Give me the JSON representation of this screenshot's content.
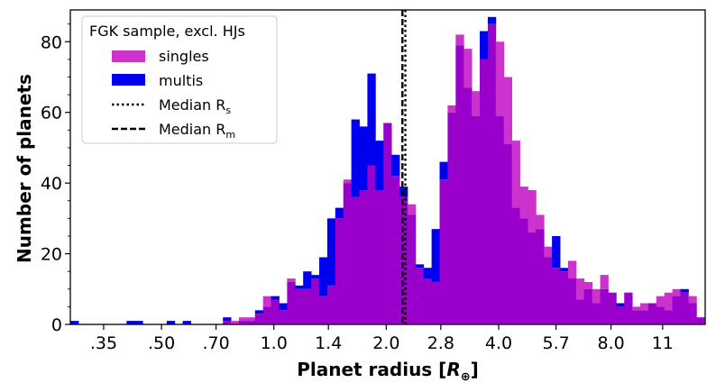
{
  "chart_data": {
    "type": "bar",
    "title": "",
    "xlabel": "Planet radius [",
    "xlabel_symbol": "R",
    "xlabel_sub": "⊕",
    "xlabel_end": "]",
    "ylabel": "Number of planets",
    "x_scale": "log",
    "xlim": [
      0.285,
      14.3
    ],
    "ylim": [
      0,
      89
    ],
    "x_tick_values": [
      0.35,
      0.5,
      0.7,
      1.0,
      1.4,
      2.0,
      2.8,
      4.0,
      5.7,
      8.0,
      11
    ],
    "x_tick_labels": [
      ".35",
      ".50",
      ".70",
      "1.0",
      "1.4",
      "2.0",
      "2.8",
      "4.0",
      "5.7",
      "8.0",
      "11"
    ],
    "y_ticks": [
      0,
      20,
      40,
      60,
      80
    ],
    "grid": false,
    "legend_position": "top-left",
    "legend_title": "FGK sample, excl. HJs",
    "bin_edges_log10": {
      "start": -0.545,
      "width": 0.0215,
      "count": 79
    },
    "series": [
      {
        "name": "singles",
        "color": "#cc33cc",
        "values": [
          0,
          0,
          0,
          0,
          0,
          0,
          0,
          0,
          0,
          0,
          0,
          0,
          0,
          0,
          0,
          0,
          0,
          0,
          0,
          1,
          1,
          2,
          2,
          3,
          8,
          7,
          4,
          13,
          10,
          10,
          13,
          8,
          11,
          30,
          41,
          36,
          38,
          45,
          38,
          57,
          42,
          36,
          34,
          16,
          13,
          12,
          41,
          62,
          82,
          78,
          66,
          75,
          85,
          80,
          70,
          52,
          39,
          38,
          31,
          22,
          16,
          15,
          18,
          13,
          12,
          10,
          14,
          9,
          5,
          9,
          5,
          6,
          6,
          8,
          9,
          10,
          9,
          8,
          2
        ]
      },
      {
        "name": "multis",
        "color": "#0000ee",
        "values": [
          1,
          0,
          0,
          0,
          0,
          0,
          0,
          1,
          1,
          0,
          0,
          0,
          1,
          0,
          1,
          0,
          0,
          0,
          0,
          2,
          0,
          1,
          1,
          4,
          5,
          8,
          6,
          12,
          11,
          15,
          14,
          19,
          30,
          33,
          40,
          58,
          56,
          71,
          52,
          57,
          48,
          39,
          31,
          17,
          16,
          27,
          46,
          60,
          79,
          67,
          59,
          83,
          87,
          59,
          51,
          33,
          30,
          26,
          27,
          19,
          25,
          16,
          13,
          7,
          10,
          6,
          10,
          9,
          6,
          9,
          4,
          4,
          6,
          5,
          4,
          8,
          10,
          6,
          2
        ]
      }
    ],
    "lines": [
      {
        "name": "Median R",
        "sub": "s",
        "x": 2.25,
        "style": "dotted",
        "color": "#000000"
      },
      {
        "name": "Median R",
        "sub": "m",
        "x": 2.21,
        "style": "dashed",
        "color": "#000000"
      }
    ],
    "overlap_color": "#9900cc"
  }
}
